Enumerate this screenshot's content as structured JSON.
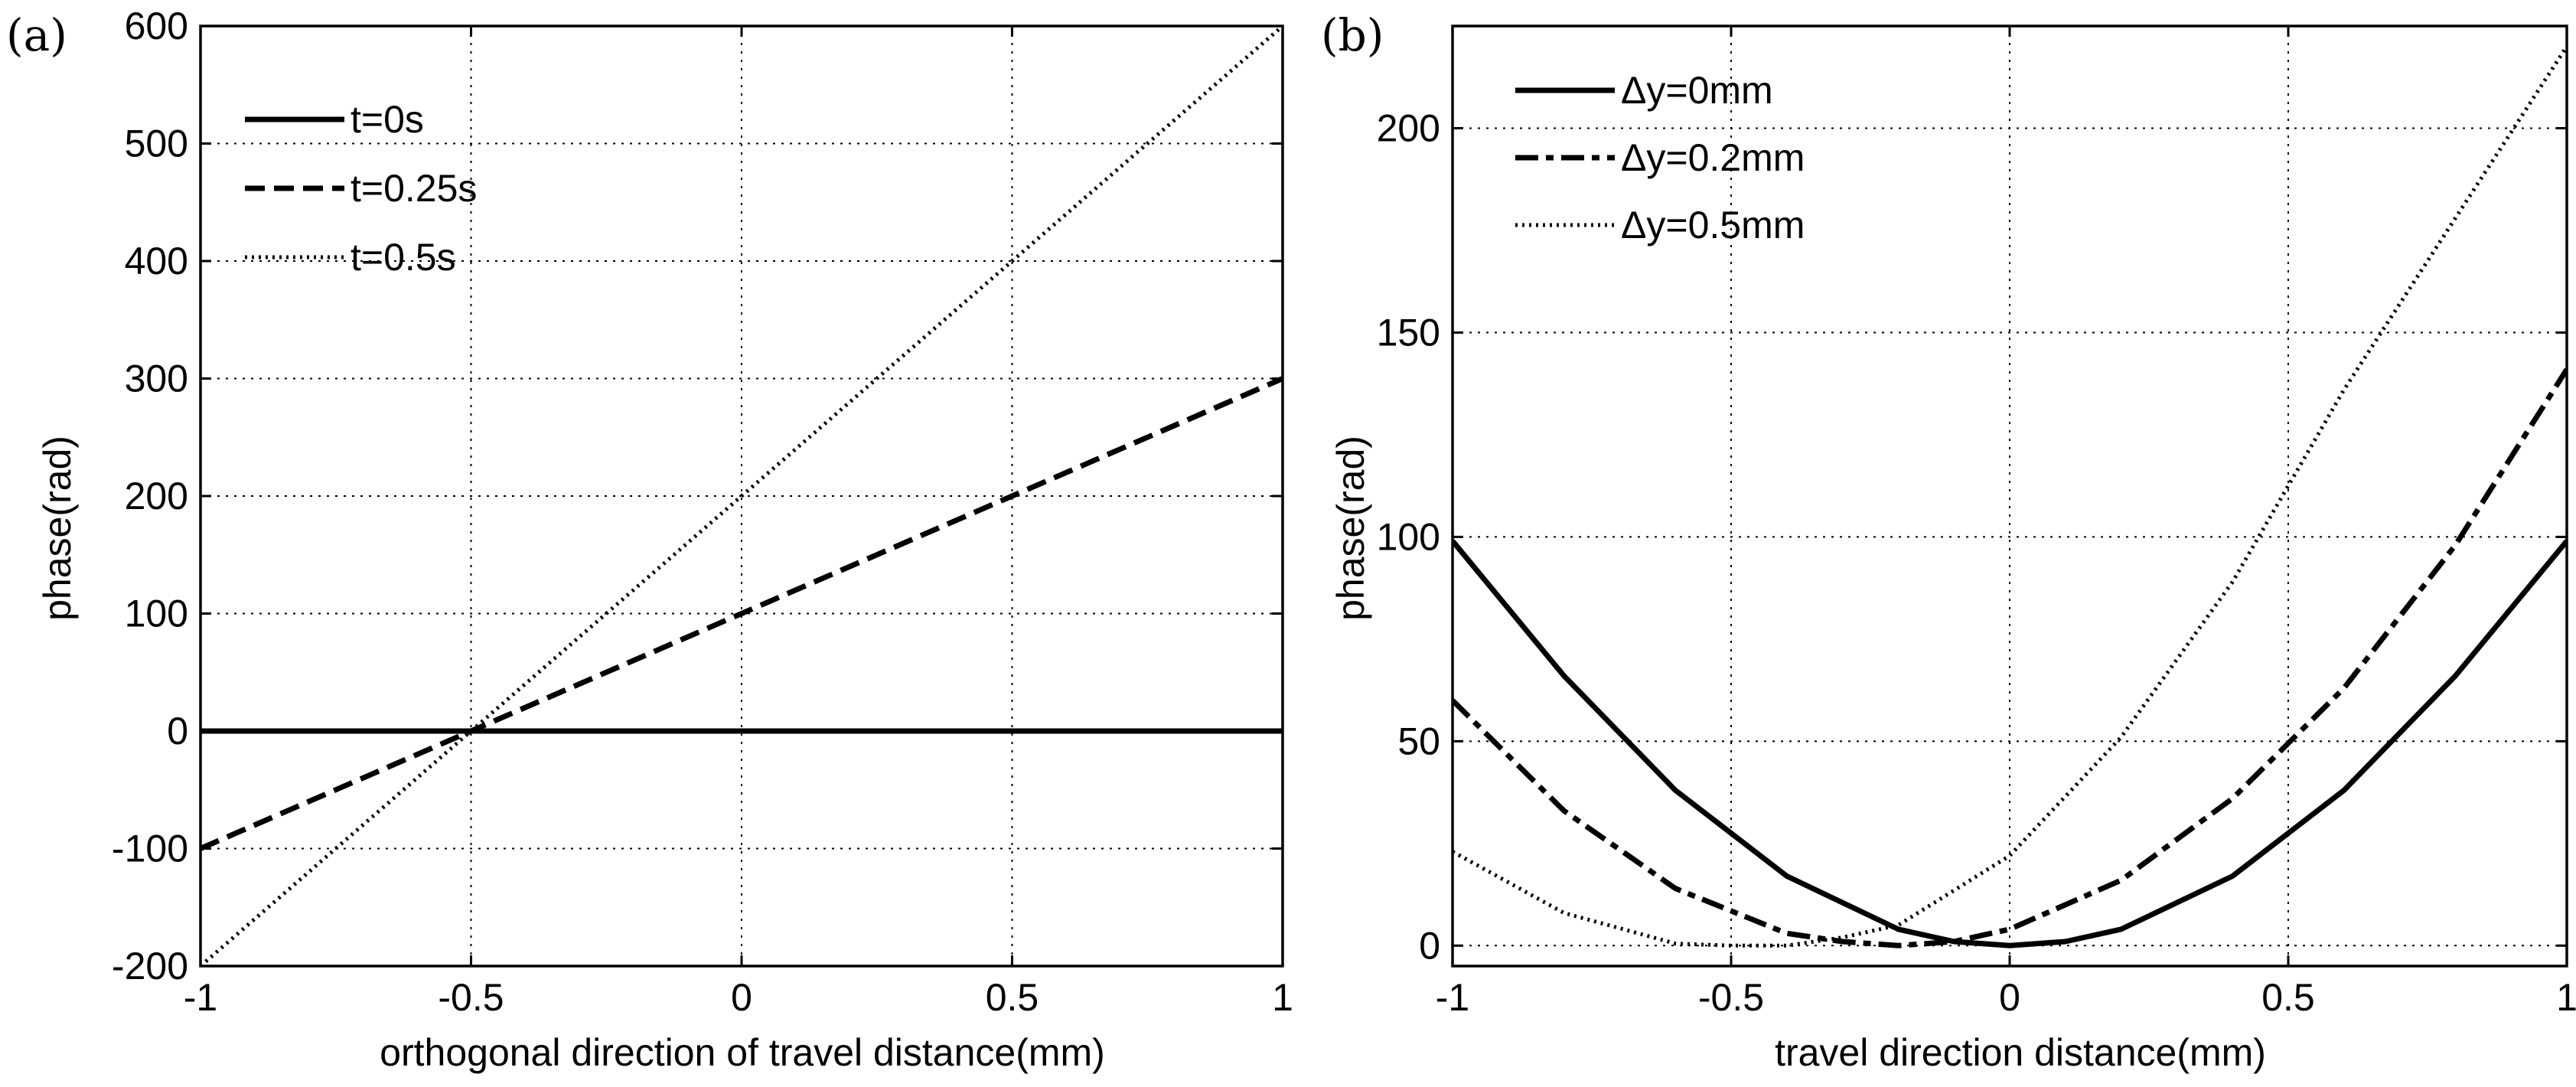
{
  "chart_data": [
    {
      "panel": "(a)",
      "type": "line",
      "xlabel": "orthogonal direction of travel distance(mm)",
      "ylabel": "phase(rad)",
      "xlim": [
        -1,
        1
      ],
      "ylim": [
        -200,
        600
      ],
      "xticks": [
        -1,
        -0.5,
        0,
        0.5,
        1
      ],
      "yticks": [
        -200,
        -100,
        0,
        100,
        200,
        300,
        400,
        500,
        600
      ],
      "xtick_labels": [
        "-1",
        "-0.5",
        "0",
        "0.5",
        "1"
      ],
      "ytick_labels": [
        "-200",
        "-100",
        "0",
        "100",
        "200",
        "300",
        "400",
        "500",
        "600"
      ],
      "grid": true,
      "legend_position": "top-left",
      "series": [
        {
          "name": "t=0s",
          "style": "solid",
          "x": [
            -1,
            -0.5,
            0,
            0.5,
            1
          ],
          "y": [
            0,
            0,
            0,
            0,
            0
          ]
        },
        {
          "name": "t=0.25s",
          "style": "dashed",
          "x": [
            -1,
            -0.5,
            0,
            0.5,
            1
          ],
          "y": [
            -100,
            0,
            100,
            200,
            300
          ]
        },
        {
          "name": "t=0.5s",
          "style": "dotted",
          "x": [
            -1,
            -0.5,
            0,
            0.5,
            1
          ],
          "y": [
            -200,
            0,
            200,
            400,
            600
          ]
        }
      ]
    },
    {
      "panel": "(b)",
      "type": "line",
      "xlabel": "travel direction distance(mm)",
      "ylabel": "phase(rad)",
      "xlim": [
        -1,
        1
      ],
      "ylim": [
        -5,
        225
      ],
      "xticks": [
        -1,
        -0.5,
        0,
        0.5,
        1
      ],
      "yticks": [
        0,
        50,
        100,
        150,
        200
      ],
      "xtick_labels": [
        "-1",
        "-0.5",
        "0",
        "0.5",
        "1"
      ],
      "ytick_labels": [
        "0",
        "50",
        "100",
        "150",
        "200"
      ],
      "grid": true,
      "legend_position": "top-left",
      "series": [
        {
          "name": "Δy=0mm",
          "style": "solid",
          "x": [
            -1,
            -0.8,
            -0.6,
            -0.4,
            -0.2,
            -0.1,
            0,
            0.1,
            0.2,
            0.4,
            0.6,
            0.8,
            1
          ],
          "y": [
            99,
            66,
            38,
            17,
            4,
            1,
            0,
            1,
            4,
            17,
            38,
            66,
            99
          ]
        },
        {
          "name": "Δy=0.2mm",
          "style": "dash-dot",
          "x": [
            -1,
            -0.8,
            -0.6,
            -0.4,
            -0.3,
            -0.2,
            -0.1,
            0,
            0.2,
            0.4,
            0.6,
            0.8,
            1
          ],
          "y": [
            60,
            33,
            14,
            3,
            1,
            0,
            1,
            4,
            16,
            36,
            63,
            98,
            141
          ]
        },
        {
          "name": "Δy=0.5mm",
          "style": "dotted",
          "x": [
            -1,
            -0.8,
            -0.6,
            -0.5,
            -0.4,
            -0.3,
            -0.2,
            0,
            0.2,
            0.4,
            0.6,
            0.8,
            1
          ],
          "y": [
            23,
            8,
            0.5,
            0,
            0,
            2,
            5,
            22,
            51,
            89,
            136,
            178,
            220
          ]
        }
      ]
    }
  ]
}
